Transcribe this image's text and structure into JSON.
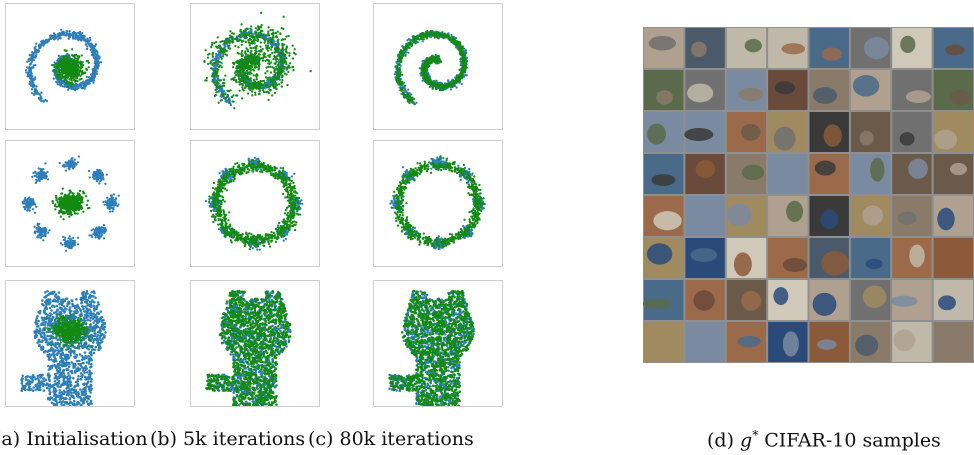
{
  "figure": {
    "captions": [
      {
        "label": "(a) Initialisation"
      },
      {
        "label": "(b) 5k iterations"
      },
      {
        "label": "(c) 80k iterations"
      },
      {
        "prefix": "(d) ",
        "symbol": "g",
        "superscript": "*",
        "suffix": " CIFAR-10 samples"
      }
    ],
    "colors": {
      "real": "#2e7fb8",
      "generated": "#138a13",
      "panel_border": "#cfcfcf"
    },
    "rows": [
      "spiral",
      "ring-of-gaussians",
      "cat-silhouette"
    ],
    "columns": [
      "initialisation",
      "5k-iterations",
      "80k-iterations"
    ],
    "cifar_grid": {
      "rows": 8,
      "cols_visible": 8
    }
  }
}
